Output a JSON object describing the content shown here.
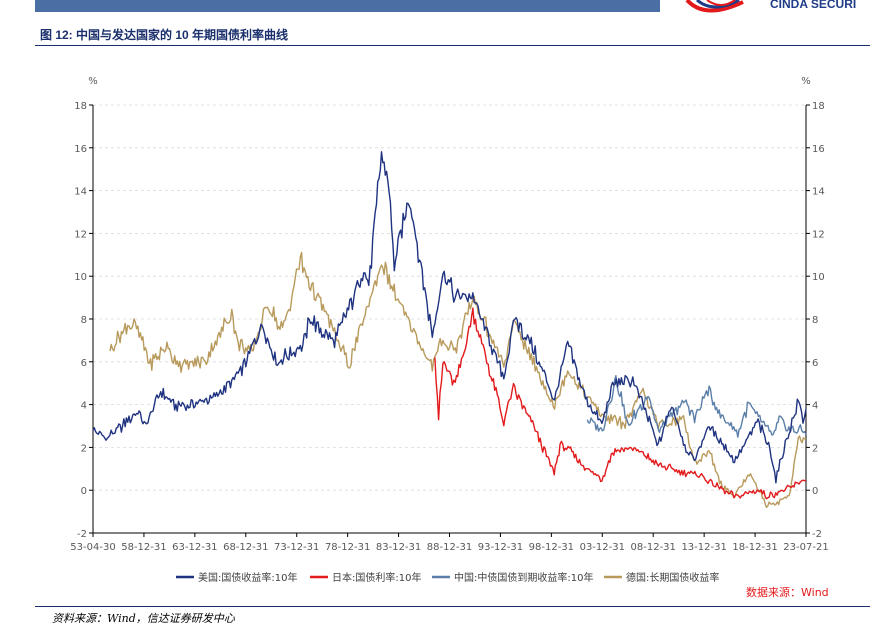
{
  "header": {
    "brand_text": "CINDA SECURI",
    "figure_title": "图 12:  中国与发达国家的 10 年期国债利率曲线"
  },
  "footer": {
    "source_label": "数据来源：Wind",
    "note": "资料来源：Wind，信达证券研发中心"
  },
  "chart_data": {
    "type": "line",
    "left_unit": "%",
    "right_unit": "%",
    "ylim": [
      -2,
      18
    ],
    "yticks": [
      -2,
      0,
      2,
      4,
      6,
      8,
      10,
      12,
      14,
      16,
      18
    ],
    "xlim": [
      "1953-04-30",
      "2023-07-21"
    ],
    "xtick_labels": [
      "53-04-30",
      "58-12-31",
      "63-12-31",
      "68-12-31",
      "73-12-31",
      "78-12-31",
      "83-12-31",
      "88-12-31",
      "93-12-31",
      "98-12-31",
      "03-12-31",
      "08-12-31",
      "13-12-31",
      "18-12-31",
      "23-07-21"
    ],
    "grid": true,
    "legend_position": "bottom",
    "series": [
      {
        "name": "美国:国债收益率:10年",
        "color": "#1f3380",
        "points": [
          [
            "1953-04-30",
            2.8
          ],
          [
            "1954-06-30",
            2.4
          ],
          [
            "1955-12-31",
            2.9
          ],
          [
            "1957-09-30",
            3.7
          ],
          [
            "1958-06-30",
            3.0
          ],
          [
            "1959-12-31",
            4.6
          ],
          [
            "1961-06-30",
            3.9
          ],
          [
            "1963-12-31",
            4.1
          ],
          [
            "1965-12-31",
            4.6
          ],
          [
            "1967-12-31",
            5.6
          ],
          [
            "1969-12-31",
            7.7
          ],
          [
            "1971-06-30",
            6.0
          ],
          [
            "1973-12-31",
            6.8
          ],
          [
            "1974-09-30",
            8.0
          ],
          [
            "1976-12-31",
            6.9
          ],
          [
            "1978-12-31",
            9.0
          ],
          [
            "1979-12-31",
            10.4
          ],
          [
            "1980-06-30",
            9.5
          ],
          [
            "1981-09-30",
            15.8
          ],
          [
            "1982-06-30",
            14.0
          ],
          [
            "1982-12-31",
            10.5
          ],
          [
            "1984-06-30",
            13.7
          ],
          [
            "1986-09-30",
            7.2
          ],
          [
            "1987-10-15",
            10.2
          ],
          [
            "1988-12-31",
            9.1
          ],
          [
            "1990-09-30",
            9.0
          ],
          [
            "1993-10-15",
            5.3
          ],
          [
            "1994-11-15",
            8.0
          ],
          [
            "1996-06-30",
            6.8
          ],
          [
            "1998-10-15",
            4.2
          ],
          [
            "2000-01-31",
            6.8
          ],
          [
            "2001-10-31",
            4.3
          ],
          [
            "2003-06-15",
            3.1
          ],
          [
            "2004-06-30",
            4.9
          ],
          [
            "2006-06-30",
            5.2
          ],
          [
            "2008-12-31",
            2.1
          ],
          [
            "2010-04-30",
            4.0
          ],
          [
            "2011-09-30",
            1.9
          ],
          [
            "2012-07-25",
            1.4
          ],
          [
            "2013-12-31",
            3.0
          ],
          [
            "2016-07-05",
            1.4
          ],
          [
            "2018-10-31",
            3.2
          ],
          [
            "2019-12-31",
            1.9
          ],
          [
            "2020-08-01",
            0.5
          ],
          [
            "2021-03-31",
            1.7
          ],
          [
            "2022-10-31",
            4.2
          ],
          [
            "2023-04-05",
            3.3
          ],
          [
            "2023-07-21",
            3.8
          ]
        ]
      },
      {
        "name": "日本:国债利率:10年",
        "color": "#e31a1c",
        "points": [
          [
            "1987-01-01",
            6.2
          ],
          [
            "1987-05-15",
            3.4
          ],
          [
            "1987-10-15",
            6.0
          ],
          [
            "1988-12-31",
            4.9
          ],
          [
            "1990-09-30",
            8.2
          ],
          [
            "1991-12-31",
            6.3
          ],
          [
            "1993-10-15",
            3.2
          ],
          [
            "1994-09-30",
            4.8
          ],
          [
            "1996-06-30",
            3.2
          ],
          [
            "1998-10-01",
            0.8
          ],
          [
            "1999-04-30",
            2.1
          ],
          [
            "2000-06-30",
            1.8
          ],
          [
            "2001-06-30",
            1.2
          ],
          [
            "2003-06-15",
            0.5
          ],
          [
            "2004-06-30",
            1.8
          ],
          [
            "2006-05-15",
            2.0
          ],
          [
            "2008-12-31",
            1.2
          ],
          [
            "2010-10-15",
            0.9
          ],
          [
            "2012-12-31",
            0.7
          ],
          [
            "2016-07-27",
            -0.3
          ],
          [
            "2018-12-31",
            0.0
          ],
          [
            "2019-08-31",
            -0.3
          ],
          [
            "2021-12-31",
            0.1
          ],
          [
            "2022-12-31",
            0.4
          ],
          [
            "2023-07-21",
            0.45
          ]
        ]
      },
      {
        "name": "中国:中债国债到期收益率:10年",
        "color": "#5b7fa8",
        "points": [
          [
            "2002-01-04",
            3.3
          ],
          [
            "2003-06-30",
            2.8
          ],
          [
            "2004-10-31",
            5.3
          ],
          [
            "2005-12-31",
            3.0
          ],
          [
            "2007-12-31",
            4.5
          ],
          [
            "2008-12-31",
            2.7
          ],
          [
            "2010-12-31",
            3.9
          ],
          [
            "2011-09-30",
            4.1
          ],
          [
            "2012-07-31",
            3.3
          ],
          [
            "2013-11-20",
            4.7
          ],
          [
            "2014-12-31",
            3.6
          ],
          [
            "2016-10-31",
            2.7
          ],
          [
            "2017-11-30",
            4.0
          ],
          [
            "2018-12-31",
            3.3
          ],
          [
            "2020-04-30",
            2.5
          ],
          [
            "2020-11-30",
            3.3
          ],
          [
            "2021-12-31",
            2.8
          ],
          [
            "2022-12-31",
            2.9
          ],
          [
            "2023-07-21",
            2.6
          ]
        ]
      },
      {
        "name": "德国:长期国债收益率",
        "color": "#b89a5c",
        "points": [
          [
            "1955-01-01",
            6.5
          ],
          [
            "1956-06-30",
            7.6
          ],
          [
            "1957-06-30",
            7.8
          ],
          [
            "1958-12-31",
            5.9
          ],
          [
            "1960-06-30",
            6.7
          ],
          [
            "1961-12-31",
            5.8
          ],
          [
            "1964-06-30",
            6.1
          ],
          [
            "1966-12-31",
            8.4
          ],
          [
            "1967-06-30",
            6.9
          ],
          [
            "1968-12-31",
            6.4
          ],
          [
            "1970-06-30",
            8.7
          ],
          [
            "1971-12-31",
            7.4
          ],
          [
            "1973-09-30",
            10.8
          ],
          [
            "1974-06-30",
            9.9
          ],
          [
            "1976-12-31",
            7.5
          ],
          [
            "1978-06-30",
            5.8
          ],
          [
            "1979-12-31",
            8.0
          ],
          [
            "1981-09-30",
            10.6
          ],
          [
            "1983-12-31",
            8.2
          ],
          [
            "1986-09-30",
            5.8
          ],
          [
            "1987-10-15",
            7.0
          ],
          [
            "1988-12-31",
            6.6
          ],
          [
            "1990-09-30",
            9.0
          ],
          [
            "1993-10-15",
            5.8
          ],
          [
            "1994-11-15",
            7.8
          ],
          [
            "1996-06-30",
            6.2
          ],
          [
            "1998-10-15",
            3.9
          ],
          [
            "2000-01-31",
            5.6
          ],
          [
            "2001-10-31",
            4.5
          ],
          [
            "2003-06-15",
            3.5
          ],
          [
            "2005-09-30",
            3.1
          ],
          [
            "2007-06-30",
            4.7
          ],
          [
            "2008-12-31",
            3.0
          ],
          [
            "2010-04-30",
            3.2
          ],
          [
            "2011-06-30",
            3.4
          ],
          [
            "2012-07-25",
            1.2
          ],
          [
            "2013-12-31",
            1.9
          ],
          [
            "2015-04-20",
            0.1
          ],
          [
            "2016-07-05",
            -0.2
          ],
          [
            "2018-01-31",
            0.8
          ],
          [
            "2019-08-31",
            -0.7
          ],
          [
            "2020-12-31",
            -0.5
          ],
          [
            "2021-12-31",
            -0.1
          ],
          [
            "2022-10-15",
            2.4
          ],
          [
            "2023-07-21",
            2.4
          ]
        ]
      }
    ]
  }
}
